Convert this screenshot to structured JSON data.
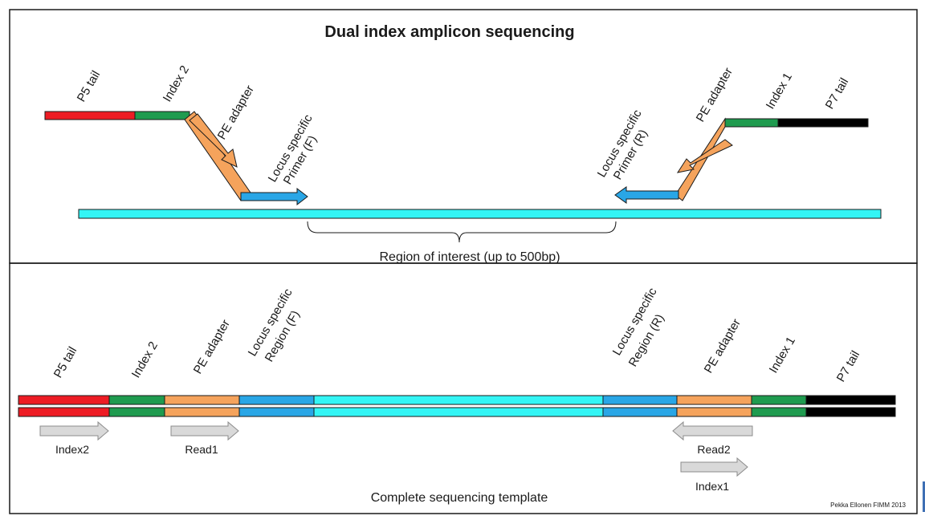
{
  "title": "Dual index amplicon sequencing",
  "top_panel": {
    "left_labels": [
      "P5 tail",
      "Index 2",
      "PE adapter"
    ],
    "left_primer_label": [
      "Locus specific",
      "Primer (F)"
    ],
    "right_primer_label": [
      "Locus specific",
      "Primer (R)"
    ],
    "right_labels": [
      "PE adapter",
      "Index 1",
      "P7 tail"
    ],
    "region_caption": "Region of interest (up to 500bp)"
  },
  "bottom_panel": {
    "segment_labels": {
      "p5_tail": "P5 tail",
      "index2": "Index 2",
      "pe_adapter_left": "PE adapter",
      "locus_f": [
        "Locus specific",
        "Region (F)"
      ],
      "locus_r": [
        "Locus specific",
        "Region (R)"
      ],
      "pe_adapter_right": "PE adapter",
      "index1": "Index 1",
      "p7_tail": "P7 tail"
    },
    "read_labels": {
      "index2_read": "Index2",
      "read1": "Read1",
      "read2": "Read2",
      "index1_read": "Index1"
    },
    "caption": "Complete sequencing template"
  },
  "credit": "Pekka Ellonen FIMM 2013",
  "colors": {
    "p5_tail": "#ed1c24",
    "index": "#1f9b4f",
    "pe_adapter": "#f5a35c",
    "locus_primer": "#29a6e6",
    "region": "#33f5f5",
    "p7_tail": "#000000",
    "read_arrow": "#d9d9d9"
  }
}
